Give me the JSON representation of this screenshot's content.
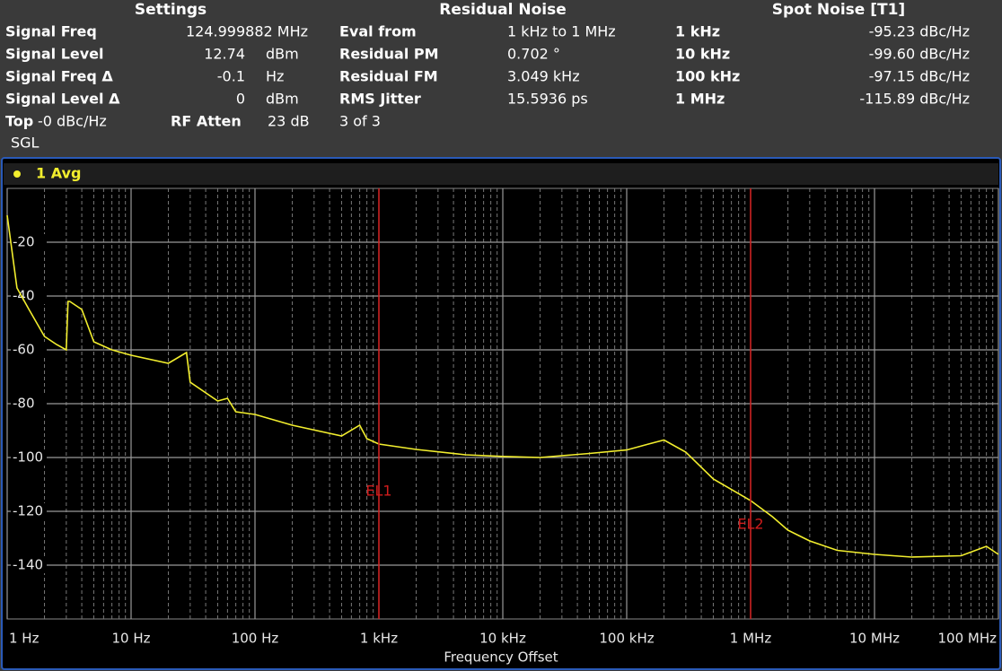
{
  "settings": {
    "title": "Settings",
    "rows": [
      [
        "Signal Freq",
        "124.999882 MHz"
      ],
      [
        "Signal Level",
        "12.74",
        "dBm"
      ],
      [
        "Signal Freq Δ",
        "-0.1",
        "Hz"
      ],
      [
        "Signal Level Δ",
        "0",
        "dBm"
      ]
    ],
    "top_label": "Top",
    "top_value": "-0 dBc/Hz",
    "atten_label": "RF Atten",
    "atten_value": "23 dB",
    "mode": "SGL"
  },
  "residual_noise": {
    "title": "Residual Noise",
    "rows": [
      [
        "Eval from",
        "1 kHz to 1 MHz"
      ],
      [
        "Residual PM",
        "0.702 °"
      ],
      [
        "Residual FM",
        "3.049 kHz"
      ],
      [
        "RMS Jitter",
        "15.5936 ps"
      ]
    ],
    "page": "3 of 3"
  },
  "spot_noise": {
    "title": "Spot Noise [T1]",
    "rows": [
      [
        "1 kHz",
        "-95.23 dBc/Hz"
      ],
      [
        "10 kHz",
        "-99.60 dBc/Hz"
      ],
      [
        "100 kHz",
        "-97.15 dBc/Hz"
      ],
      [
        "1 MHz",
        "-115.89 dBc/Hz"
      ]
    ]
  },
  "chart_data": {
    "type": "line",
    "trace_label": "1 Avg",
    "x_label": "Frequency Offset",
    "xscale": "log",
    "xlim": [
      1,
      100000000
    ],
    "xticks": [
      {
        "value": 1,
        "label": "1 Hz"
      },
      {
        "value": 10,
        "label": "10 Hz"
      },
      {
        "value": 100,
        "label": "100 Hz"
      },
      {
        "value": 1000,
        "label": "1 kHz"
      },
      {
        "value": 10000,
        "label": "10 kHz"
      },
      {
        "value": 100000,
        "label": "100 kHz"
      },
      {
        "value": 1000000,
        "label": "1 MHz"
      },
      {
        "value": 10000000,
        "label": "10 MHz"
      },
      {
        "value": 100000000,
        "label": "100 MHz"
      }
    ],
    "ylim": [
      -160,
      0
    ],
    "yticks": [
      -20,
      -40,
      -60,
      -80,
      -100,
      -120,
      -140
    ],
    "grid": true,
    "lines": [
      {
        "x": 1000,
        "label": "EL1",
        "color": "#d01c1c"
      },
      {
        "x": 1000000,
        "label": "EL2",
        "color": "#d01c1c"
      }
    ],
    "series": [
      {
        "name": "1 Avg",
        "color": "#f2ee2e",
        "x": [
          1,
          1.2,
          1.5,
          2,
          2.5,
          3,
          3.1,
          3.2,
          4,
          5,
          7,
          10,
          20,
          28,
          30,
          50,
          60,
          70,
          100,
          200,
          500,
          700,
          800,
          1000,
          2000,
          5000,
          10000,
          20000,
          50000,
          100000,
          150000,
          200000,
          300000,
          500000,
          1000000,
          1500000,
          2000000,
          3000000,
          5000000,
          10000000,
          20000000,
          50000000,
          70000000,
          80000000,
          100000000
        ],
        "values": [
          -10,
          -37,
          -45,
          -55,
          -58,
          -60,
          -42,
          -42,
          -45,
          -57,
          -60,
          -62,
          -65,
          -61,
          -72,
          -79,
          -78,
          -83,
          -84,
          -88,
          -92,
          -88,
          -93,
          -95,
          -97,
          -99,
          -99.6,
          -100,
          -98.5,
          -97.2,
          -95,
          -93.5,
          -98,
          -108,
          -116,
          -122,
          -127,
          -131,
          -134.5,
          -136,
          -137,
          -136.5,
          -134,
          -133,
          -136
        ]
      }
    ]
  }
}
